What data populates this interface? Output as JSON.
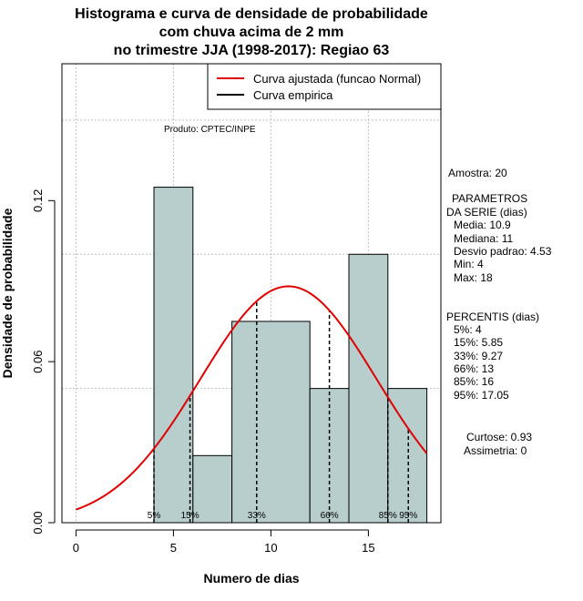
{
  "chart_data": {
    "type": "histogram",
    "title_lines": [
      "Histograma e curva de densidade de probabilidade",
      "com chuva acima de 2 mm",
      "no trimestre JJA (1998-2017): Regiao 63"
    ],
    "xlabel": "Numero de dias",
    "ylabel": "Densidade de probabilidade",
    "xlim": [
      -0.72,
      18.72
    ],
    "ylim": [
      0,
      0.171
    ],
    "x_ticks": [
      0,
      5,
      10,
      15
    ],
    "x_tick_labels": [
      "0",
      "5",
      "10",
      "15"
    ],
    "y_ticks": [
      0.0,
      0.06,
      0.12
    ],
    "y_tick_labels": [
      "0.00",
      "0.06",
      "0.12"
    ],
    "grid": true,
    "bins": [
      {
        "start": 4,
        "end": 6,
        "density": 0.125
      },
      {
        "start": 6,
        "end": 8,
        "density": 0.025
      },
      {
        "start": 8,
        "end": 12,
        "density": 0.075
      },
      {
        "start": 12,
        "end": 14,
        "density": 0.05
      },
      {
        "start": 14,
        "end": 16,
        "density": 0.1
      },
      {
        "start": 16,
        "end": 18,
        "density": 0.05
      }
    ],
    "normal_fit": {
      "mean": 10.9,
      "sd": 4.53,
      "x_from": 0,
      "x_to": 18
    },
    "legend": [
      {
        "label": "Curva ajustada (funcao Normal)",
        "color": "#e00000"
      },
      {
        "label": "Curva empirica",
        "color": "#000000"
      }
    ],
    "annotation": "Produto: CPTEC/INPE",
    "percentile_lines": [
      {
        "label": "5%",
        "x": 4
      },
      {
        "label": "15%",
        "x": 5.85
      },
      {
        "label": "33%",
        "x": 9.27
      },
      {
        "label": "66%",
        "x": 13
      },
      {
        "label": "85%",
        "x": 16
      },
      {
        "label": "95%",
        "x": 17.05
      }
    ],
    "colors": {
      "bar_fill": "#b7cecd",
      "curve": "#e00000",
      "grid": "#c0c0c0"
    }
  },
  "stats": {
    "amostra": "Amostra: 20",
    "params_title_1": "PARAMETROS",
    "params_title_2": "DA SERIE (dias)",
    "media": "Media: 10.9",
    "mediana": "Mediana: 11",
    "desvio": "Desvio padrao: 4.53",
    "min": "Min: 4",
    "max": "Max: 18",
    "percentis_title": "PERCENTIS (dias)",
    "p5": "5%: 4",
    "p15": "15%: 5.85",
    "p33": "33%: 9.27",
    "p66": "66%: 13",
    "p85": "85%: 16",
    "p95": "95%: 17.05",
    "curtose": "Curtose: 0.93",
    "assimetria": "Assimetria: 0"
  }
}
